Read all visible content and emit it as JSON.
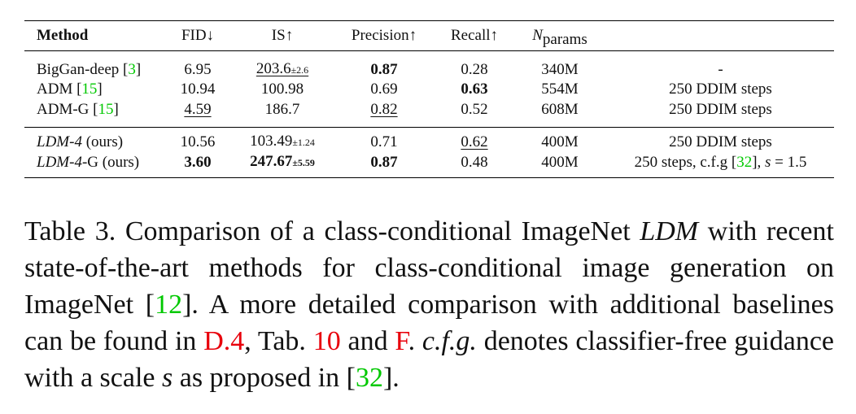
{
  "table": {
    "header": [
      "Method",
      "FID↓",
      "IS↑",
      "Precision↑",
      "Recall↑",
      [
        "N",
        "params"
      ]
    ],
    "rows": [
      [
        [
          "BigGan-deep [",
          "3",
          "]"
        ],
        "6.95",
        [
          "203.6",
          "±2.6"
        ],
        "0.87",
        "0.28",
        "340M",
        "-"
      ],
      [
        [
          "ADM [",
          "15",
          "]"
        ],
        "10.94",
        "100.98",
        "0.69",
        "0.63",
        "554M",
        "250 DDIM steps"
      ],
      [
        [
          "ADM-G [",
          "15",
          "]"
        ],
        "4.59",
        "186.7",
        "0.82",
        "0.52",
        "608M",
        "250 DDIM steps"
      ],
      [
        [
          "LDM-4",
          " (ours)"
        ],
        "10.56",
        [
          "103.49",
          "±1.24"
        ],
        "0.71",
        "0.62",
        "400M",
        "250 DDIM steps"
      ],
      [
        [
          "LDM-4",
          "-G (ours)"
        ],
        "3.60",
        [
          "247.67",
          "±5.59"
        ],
        "0.87",
        "0.48",
        "400M",
        [
          "250 steps, c.f.g [",
          "32",
          "], ",
          "s",
          " = 1.5"
        ]
      ]
    ]
  },
  "caption": [
    "Table 3.",
    " Comparison of a class-conditional ImageNet ",
    "LDM",
    " with recent state-of-the-art methods for class-conditional image generation on ImageNet [",
    "12",
    "]. A more detailed comparison with additional baselines can be found in ",
    "D.4",
    ", Tab. ",
    "10",
    " and ",
    "F",
    ". ",
    "c.f.g.",
    " denotes classifier-free guidance with a scale ",
    "s",
    " as proposed in  [",
    "32",
    "]."
  ]
}
